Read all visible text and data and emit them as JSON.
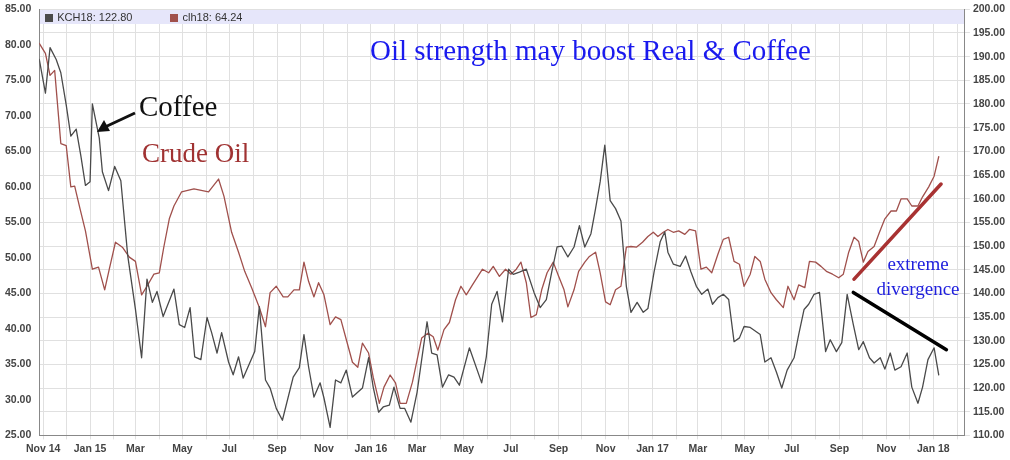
{
  "chart_data": {
    "type": "line",
    "title": "Oil strength may boost Real & Coffee",
    "annotations": [
      "Coffee",
      "Crude Oil",
      "extreme divergence"
    ],
    "xlim": [
      "2014-10-27",
      "2018-02-11"
    ],
    "xticks": [
      {
        "value": "2014-11-01",
        "label": "Nov 14"
      },
      {
        "value": "2014-12-01",
        "label": null
      },
      {
        "value": "2015-01-01",
        "label": "Jan 15"
      },
      {
        "value": "2015-02-01",
        "label": null
      },
      {
        "value": "2015-03-01",
        "label": "Mar"
      },
      {
        "value": "2015-04-01",
        "label": null
      },
      {
        "value": "2015-05-01",
        "label": "May"
      },
      {
        "value": "2015-06-01",
        "label": null
      },
      {
        "value": "2015-07-01",
        "label": "Jul"
      },
      {
        "value": "2015-08-01",
        "label": null
      },
      {
        "value": "2015-09-01",
        "label": "Sep"
      },
      {
        "value": "2015-10-01",
        "label": null
      },
      {
        "value": "2015-11-01",
        "label": "Nov"
      },
      {
        "value": "2015-12-01",
        "label": null
      },
      {
        "value": "2016-01-01",
        "label": "Jan 16"
      },
      {
        "value": "2016-02-01",
        "label": null
      },
      {
        "value": "2016-03-01",
        "label": "Mar"
      },
      {
        "value": "2016-04-01",
        "label": null
      },
      {
        "value": "2016-05-01",
        "label": "May"
      },
      {
        "value": "2016-06-01",
        "label": null
      },
      {
        "value": "2016-07-01",
        "label": "Jul"
      },
      {
        "value": "2016-08-01",
        "label": null
      },
      {
        "value": "2016-09-01",
        "label": "Sep"
      },
      {
        "value": "2016-10-01",
        "label": null
      },
      {
        "value": "2016-11-01",
        "label": "Nov"
      },
      {
        "value": "2016-12-01",
        "label": null
      },
      {
        "value": "2017-01-01",
        "label": "Jan 17"
      },
      {
        "value": "2017-02-01",
        "label": null
      },
      {
        "value": "2017-03-01",
        "label": "Mar"
      },
      {
        "value": "2017-04-01",
        "label": null
      },
      {
        "value": "2017-05-01",
        "label": "May"
      },
      {
        "value": "2017-06-01",
        "label": null
      },
      {
        "value": "2017-07-01",
        "label": "Jul"
      },
      {
        "value": "2017-08-01",
        "label": null
      },
      {
        "value": "2017-09-01",
        "label": "Sep"
      },
      {
        "value": "2017-10-01",
        "label": null
      },
      {
        "value": "2017-11-01",
        "label": "Nov"
      },
      {
        "value": "2017-12-01",
        "label": null
      },
      {
        "value": "2018-01-01",
        "label": "Jan 18"
      },
      {
        "value": "2018-02-01",
        "label": null
      }
    ],
    "ylim": [
      25,
      85
    ],
    "yticks": [
      {
        "value": 25,
        "label": "25.00"
      },
      {
        "value": 30,
        "label": "30.00"
      },
      {
        "value": 35,
        "label": "35.00"
      },
      {
        "value": 40,
        "label": "40.00"
      },
      {
        "value": 45,
        "label": "45.00"
      },
      {
        "value": 50,
        "label": "50.00"
      },
      {
        "value": 55,
        "label": "55.00"
      },
      {
        "value": 60,
        "label": "60.00"
      },
      {
        "value": 65,
        "label": "65.00"
      },
      {
        "value": 70,
        "label": "70.00"
      },
      {
        "value": 75,
        "label": "75.00"
      },
      {
        "value": 80,
        "label": "80.00"
      },
      {
        "value": 85,
        "label": "85.00"
      }
    ],
    "y2lim": [
      110,
      200
    ],
    "y2ticks": [
      {
        "value": 110,
        "label": "110.00"
      },
      {
        "value": 115,
        "label": "115.00"
      },
      {
        "value": 120,
        "label": "120.00"
      },
      {
        "value": 125,
        "label": "125.00"
      },
      {
        "value": 130,
        "label": "130.00"
      },
      {
        "value": 135,
        "label": "135.00"
      },
      {
        "value": 140,
        "label": "140.00"
      },
      {
        "value": 145,
        "label": "145.00"
      },
      {
        "value": 150,
        "label": "150.00"
      },
      {
        "value": 155,
        "label": "155.00"
      },
      {
        "value": 160,
        "label": "160.00"
      },
      {
        "value": 165,
        "label": "165.00"
      },
      {
        "value": 170,
        "label": "170.00"
      },
      {
        "value": 175,
        "label": "175.00"
      },
      {
        "value": 180,
        "label": "180.00"
      },
      {
        "value": 185,
        "label": "185.00"
      },
      {
        "value": 190,
        "label": "190.00"
      },
      {
        "value": 195,
        "label": "195.00"
      },
      {
        "value": 200,
        "label": "200.00"
      }
    ],
    "grid": true,
    "legend": "top left",
    "marker": "none",
    "line_style": "solid",
    "series": [
      {
        "name": "KCH18: 122.80",
        "color": "#4a4a4a",
        "axis": "y2",
        "x": [
          "2014-10-27",
          "2014-11-04",
          "2014-11-10",
          "2014-11-18",
          "2014-11-24",
          "2014-12-01",
          "2014-12-07",
          "2014-12-14",
          "2014-12-20",
          "2014-12-26",
          "2015-01-01",
          "2015-01-04",
          "2015-01-13",
          "2015-01-17",
          "2015-01-25",
          "2015-02-02",
          "2015-02-10",
          "2015-02-19",
          "2015-03-01",
          "2015-03-09",
          "2015-03-16",
          "2015-03-23",
          "2015-03-29",
          "2015-04-06",
          "2015-04-20",
          "2015-04-27",
          "2015-05-04",
          "2015-05-11",
          "2015-05-17",
          "2015-05-25",
          "2015-06-02",
          "2015-06-08",
          "2015-06-15",
          "2015-06-21",
          "2015-06-30",
          "2015-07-06",
          "2015-07-13",
          "2015-07-19",
          "2015-08-03",
          "2015-08-09",
          "2015-08-17",
          "2015-08-23",
          "2015-08-31",
          "2015-09-08",
          "2015-09-22",
          "2015-09-30",
          "2015-10-06",
          "2015-10-12",
          "2015-10-19",
          "2015-10-27",
          "2015-11-01",
          "2015-11-09",
          "2015-11-16",
          "2015-11-23",
          "2015-11-30",
          "2015-12-08",
          "2015-12-21",
          "2015-12-29",
          "2016-01-04",
          "2016-01-11",
          "2016-01-17",
          "2016-01-25",
          "2016-01-31",
          "2016-02-08",
          "2016-02-14",
          "2016-02-22",
          "2016-03-01",
          "2016-03-07",
          "2016-03-14",
          "2016-03-20",
          "2016-03-27",
          "2016-04-03",
          "2016-04-11",
          "2016-04-18",
          "2016-04-25",
          "2016-05-08",
          "2016-05-24",
          "2016-05-30",
          "2016-06-06",
          "2016-06-13",
          "2016-06-20",
          "2016-06-28",
          "2016-07-04",
          "2016-07-12",
          "2016-07-21",
          "2016-07-31",
          "2016-08-08",
          "2016-08-16",
          "2016-08-23",
          "2016-08-30",
          "2016-09-05",
          "2016-09-13",
          "2016-09-21",
          "2016-09-28",
          "2016-10-05",
          "2016-10-13",
          "2016-10-19",
          "2016-10-25",
          "2016-10-31",
          "2016-11-07",
          "2016-11-14",
          "2016-11-21",
          "2016-11-28",
          "2016-12-04",
          "2016-12-12",
          "2016-12-20",
          "2016-12-26",
          "2017-01-03",
          "2017-01-11",
          "2017-01-17",
          "2017-01-21",
          "2017-01-28",
          "2017-02-06",
          "2017-02-13",
          "2017-02-20",
          "2017-02-27",
          "2017-03-06",
          "2017-03-14",
          "2017-03-20",
          "2017-03-27",
          "2017-04-03",
          "2017-04-10",
          "2017-04-17",
          "2017-04-24",
          "2017-04-30",
          "2017-05-08",
          "2017-05-21",
          "2017-05-27",
          "2017-06-04",
          "2017-06-11",
          "2017-06-18",
          "2017-06-25",
          "2017-07-04",
          "2017-07-10",
          "2017-07-17",
          "2017-07-23",
          "2017-07-30",
          "2017-08-06",
          "2017-08-14",
          "2017-08-20",
          "2017-08-28",
          "2017-09-04",
          "2017-09-11",
          "2017-09-19",
          "2017-09-26",
          "2017-10-02",
          "2017-10-10",
          "2017-10-16",
          "2017-10-24",
          "2017-10-30",
          "2017-11-06",
          "2017-11-12",
          "2017-11-20",
          "2017-11-28",
          "2017-12-04",
          "2017-12-12",
          "2017-12-18",
          "2017-12-25",
          "2018-01-02",
          "2018-01-08"
        ],
        "values": [
          189.4,
          182.3,
          191.9,
          189.4,
          186.6,
          179.8,
          173.2,
          174.7,
          169.1,
          162.8,
          163.6,
          180.0,
          172.8,
          165.7,
          161.7,
          166.8,
          163.8,
          147.9,
          136.6,
          126.4,
          143.0,
          138.1,
          140.4,
          135.1,
          140.9,
          133.4,
          132.8,
          137.0,
          126.6,
          126.0,
          134.9,
          131.7,
          127.4,
          131.7,
          125.5,
          122.8,
          126.6,
          122.1,
          127.7,
          137.2,
          121.7,
          120.0,
          115.7,
          113.2,
          122.3,
          124.3,
          131.3,
          124.5,
          118.1,
          121.1,
          117.9,
          111.7,
          121.7,
          121.1,
          123.8,
          118.1,
          120.0,
          126.4,
          120.2,
          114.9,
          116.0,
          116.4,
          120.2,
          115.7,
          115.7,
          112.8,
          119.1,
          126.0,
          134.0,
          127.4,
          127.0,
          120.2,
          122.8,
          122.3,
          120.6,
          128.5,
          121.1,
          126.6,
          137.7,
          140.4,
          134.0,
          145.1,
          144.0,
          144.5,
          145.1,
          140.2,
          137.0,
          138.7,
          144.5,
          149.8,
          150.0,
          147.7,
          149.8,
          154.3,
          149.8,
          152.6,
          157.9,
          163.6,
          171.3,
          159.6,
          157.9,
          155.3,
          141.5,
          136.0,
          138.1,
          136.0,
          136.8,
          144.5,
          150.9,
          153.0,
          148.7,
          146.2,
          145.7,
          147.9,
          144.5,
          141.5,
          139.8,
          140.9,
          137.7,
          139.1,
          139.8,
          138.7,
          129.8,
          130.6,
          133.0,
          132.8,
          131.3,
          125.5,
          126.4,
          123.4,
          120.0,
          123.8,
          126.4,
          131.3,
          136.6,
          137.7,
          139.8,
          140.2,
          127.7,
          130.2,
          127.7,
          129.6,
          139.8,
          133.4,
          128.1,
          129.8,
          126.4,
          125.3,
          126.4,
          124.0,
          127.4,
          123.8,
          124.5,
          127.4,
          120.2,
          116.8,
          120.2,
          126.0,
          128.5,
          122.8
        ]
      },
      {
        "name": "clh18: 64.24",
        "color": "#a0504c",
        "x": [
          "2014-10-27",
          "2014-11-04",
          "2014-11-10",
          "2014-11-16",
          "2014-11-24",
          "2014-12-01",
          "2014-12-07",
          "2014-12-12",
          "2014-12-19",
          "2014-12-26",
          "2015-01-04",
          "2015-01-12",
          "2015-01-20",
          "2015-01-26",
          "2015-02-03",
          "2015-02-12",
          "2015-02-21",
          "2015-03-01",
          "2015-03-09",
          "2015-03-16",
          "2015-03-25",
          "2015-04-01",
          "2015-04-07",
          "2015-04-14",
          "2015-04-20",
          "2015-04-30",
          "2015-05-16",
          "2015-06-04",
          "2015-06-17",
          "2015-06-24",
          "2015-07-04",
          "2015-07-13",
          "2015-07-21",
          "2015-07-30",
          "2015-08-09",
          "2015-08-17",
          "2015-08-23",
          "2015-08-31",
          "2015-09-09",
          "2015-09-15",
          "2015-09-23",
          "2015-09-30",
          "2015-10-06",
          "2015-10-12",
          "2015-10-19",
          "2015-10-25",
          "2015-11-01",
          "2015-11-09",
          "2015-11-16",
          "2015-11-23",
          "2015-11-30",
          "2015-12-08",
          "2015-12-15",
          "2015-12-21",
          "2015-12-29",
          "2016-01-04",
          "2016-01-12",
          "2016-01-18",
          "2016-01-26",
          "2016-02-02",
          "2016-02-08",
          "2016-02-16",
          "2016-02-24",
          "2016-03-01",
          "2016-03-07",
          "2016-03-15",
          "2016-03-22",
          "2016-03-28",
          "2016-04-05",
          "2016-04-12",
          "2016-04-20",
          "2016-04-27",
          "2016-05-04",
          "2016-05-12",
          "2016-05-19",
          "2016-05-25",
          "2016-06-02",
          "2016-06-08",
          "2016-06-16",
          "2016-06-24",
          "2016-07-01",
          "2016-07-08",
          "2016-07-14",
          "2016-07-21",
          "2016-07-27",
          "2016-08-03",
          "2016-08-10",
          "2016-08-17",
          "2016-08-25",
          "2016-09-01",
          "2016-09-08",
          "2016-09-13",
          "2016-09-21",
          "2016-09-27",
          "2016-10-05",
          "2016-10-11",
          "2016-10-19",
          "2016-10-25",
          "2016-11-01",
          "2016-11-07",
          "2016-11-14",
          "2016-11-21",
          "2016-11-28",
          "2016-12-04",
          "2016-12-11",
          "2016-12-19",
          "2016-12-26",
          "2017-01-02",
          "2017-01-08",
          "2017-01-15",
          "2017-01-21",
          "2017-01-28",
          "2017-02-04",
          "2017-02-12",
          "2017-02-18",
          "2017-02-26",
          "2017-03-05",
          "2017-03-12",
          "2017-03-19",
          "2017-03-27",
          "2017-04-03",
          "2017-04-10",
          "2017-04-17",
          "2017-04-24",
          "2017-04-30",
          "2017-05-08",
          "2017-05-14",
          "2017-05-21",
          "2017-05-27",
          "2017-06-04",
          "2017-06-11",
          "2017-06-20",
          "2017-06-26",
          "2017-07-04",
          "2017-07-10",
          "2017-07-18",
          "2017-07-24",
          "2017-08-01",
          "2017-08-08",
          "2017-08-15",
          "2017-08-23",
          "2017-08-31",
          "2017-09-06",
          "2017-09-13",
          "2017-09-20",
          "2017-09-26",
          "2017-10-02",
          "2017-10-08",
          "2017-10-16",
          "2017-10-23",
          "2017-10-30",
          "2017-11-07",
          "2017-11-14",
          "2017-11-20",
          "2017-11-28",
          "2017-12-04",
          "2017-12-12",
          "2017-12-18",
          "2017-12-26",
          "2018-01-02",
          "2018-01-08"
        ],
        "values": [
          80.2,
          78.8,
          75.7,
          76.4,
          66.1,
          65.8,
          60.0,
          60.1,
          56.9,
          53.8,
          48.4,
          48.7,
          45.5,
          48.4,
          52.2,
          51.5,
          50.1,
          49.5,
          44.8,
          46.0,
          47.7,
          47.9,
          51.6,
          55.5,
          57.3,
          59.3,
          59.7,
          59.3,
          61.1,
          58.7,
          53.6,
          50.8,
          48.1,
          45.8,
          43.0,
          40.3,
          45.1,
          46.0,
          44.5,
          44.5,
          45.5,
          45.5,
          49.4,
          46.7,
          44.5,
          46.5,
          44.8,
          40.6,
          41.7,
          41.3,
          38.5,
          35.3,
          34.6,
          38.0,
          36.6,
          33.2,
          29.5,
          31.8,
          33.5,
          32.4,
          29.5,
          29.5,
          32.5,
          35.6,
          38.7,
          39.4,
          38.9,
          37.0,
          39.9,
          40.9,
          44.1,
          46.0,
          44.8,
          46.2,
          47.4,
          48.4,
          47.9,
          48.8,
          47.4,
          48.4,
          47.7,
          48.4,
          49.4,
          46.5,
          41.6,
          42.0,
          45.5,
          47.9,
          49.4,
          47.4,
          45.5,
          43.1,
          45.5,
          48.1,
          49.4,
          50.2,
          50.8,
          47.9,
          43.8,
          43.4,
          45.5,
          46.0,
          51.5,
          51.6,
          51.5,
          52.2,
          53.0,
          53.6,
          53.0,
          53.6,
          54.0,
          53.6,
          53.8,
          53.3,
          54.0,
          53.8,
          48.4,
          48.7,
          47.9,
          50.5,
          52.6,
          52.9,
          49.5,
          49.1,
          46.0,
          47.7,
          50.2,
          49.5,
          47.0,
          45.1,
          44.1,
          43.0,
          46.0,
          44.1,
          46.2,
          45.8,
          49.5,
          49.4,
          48.8,
          48.1,
          47.7,
          47.2,
          47.7,
          50.8,
          52.9,
          52.3,
          49.4,
          50.9,
          51.6,
          53.6,
          55.5,
          56.6,
          56.6,
          58.3,
          58.3,
          57.3,
          57.3,
          58.6,
          60.0,
          61.5,
          64.24
        ]
      },
      {
        "color": "#a83232",
        "x": [
          "2017-09-20",
          "2018-01-11"
        ],
        "values": [
          47.0,
          60.4
        ]
      },
      {
        "color": "#000000",
        "axis": "y2",
        "x": [
          "2017-09-19",
          "2018-01-18"
        ],
        "values": [
          140.2,
          128.1
        ]
      }
    ]
  }
}
